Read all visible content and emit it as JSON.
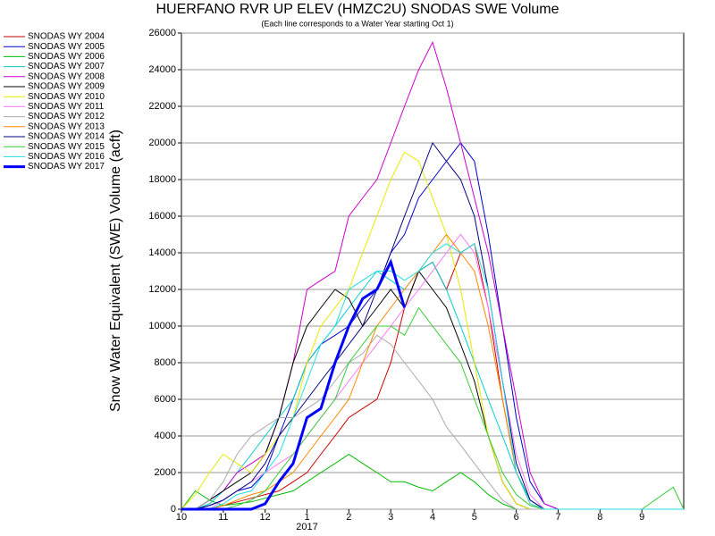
{
  "chart_data": {
    "type": "line",
    "title": "HUERFANO RVR UP ELEV (HMZC2U) SNODAS SWE Volume",
    "subtitle": "(Each line corresponds to a Water Year starting Oct 1)",
    "y_label": "Snow Water Equivalent (SWE) Volume (acft)",
    "annotation": {
      "text": "2017",
      "x": 3
    },
    "x": [
      0,
      0.33,
      0.67,
      1,
      1.33,
      1.67,
      2,
      2.33,
      2.67,
      3,
      3.33,
      3.67,
      4,
      4.33,
      4.67,
      5,
      5.33,
      5.67,
      6,
      6.33,
      6.67,
      7,
      7.33,
      7.67,
      8,
      8.33,
      8.67,
      9,
      9.33,
      10,
      11,
      11.75,
      12
    ],
    "xlim": [
      0,
      12
    ],
    "xticks": [
      {
        "value": 0,
        "label": "10"
      },
      {
        "value": 1,
        "label": "11"
      },
      {
        "value": 2,
        "label": "12"
      },
      {
        "value": 3,
        "label": "1"
      },
      {
        "value": 4,
        "label": "2"
      },
      {
        "value": 5,
        "label": "3"
      },
      {
        "value": 6,
        "label": "4"
      },
      {
        "value": 7,
        "label": "5"
      },
      {
        "value": 8,
        "label": "6"
      },
      {
        "value": 9,
        "label": "7"
      },
      {
        "value": 10,
        "label": "8"
      },
      {
        "value": 11,
        "label": "9"
      }
    ],
    "ylim": [
      0,
      26000
    ],
    "yticks": [
      0,
      2000,
      4000,
      6000,
      8000,
      10000,
      12000,
      14000,
      16000,
      18000,
      20000,
      22000,
      24000,
      26000
    ],
    "grid": true,
    "legend": "top-left",
    "series": [
      {
        "name": "SNODAS WY 2004",
        "color": "#cc0000",
        "values": [
          0,
          0,
          0,
          200,
          400,
          600,
          800,
          1000,
          1500,
          2000,
          3000,
          4000,
          5000,
          5500,
          6000,
          8000,
          11000,
          13000,
          13500,
          12000,
          14000,
          14500,
          11000,
          6000,
          2000,
          500,
          0,
          0,
          0,
          0,
          0,
          0,
          0
        ]
      },
      {
        "name": "SNODAS WY 2005",
        "color": "#0000cc",
        "values": [
          0,
          0,
          200,
          500,
          1000,
          1200,
          2000,
          4000,
          6000,
          8000,
          9000,
          9500,
          10000,
          11000,
          12000,
          14000,
          15000,
          17000,
          18000,
          19000,
          20000,
          19000,
          15000,
          10000,
          5000,
          1500,
          300,
          0,
          0,
          0,
          0,
          0,
          0
        ]
      },
      {
        "name": "SNODAS WY 2006",
        "color": "#00bb00",
        "values": [
          0,
          1000,
          500,
          200,
          300,
          400,
          600,
          800,
          1000,
          1500,
          2000,
          2500,
          3000,
          2500,
          2000,
          1500,
          1500,
          1200,
          1000,
          1500,
          2000,
          1500,
          800,
          300,
          0,
          0,
          0,
          0,
          0,
          0,
          0,
          0,
          0
        ]
      },
      {
        "name": "SNODAS WY 2007",
        "color": "#00cccc",
        "values": [
          0,
          0,
          300,
          1000,
          2000,
          3000,
          4000,
          5000,
          6000,
          8000,
          9000,
          10000,
          11000,
          12000,
          13000,
          12500,
          12000,
          13000,
          13500,
          12000,
          10000,
          8000,
          6000,
          4000,
          2000,
          500,
          0,
          0,
          0,
          0,
          0,
          0,
          0
        ]
      },
      {
        "name": "SNODAS WY 2008",
        "color": "#cc00cc",
        "values": [
          0,
          0,
          500,
          1000,
          2000,
          2500,
          3000,
          5000,
          8000,
          12000,
          12500,
          13000,
          16000,
          17000,
          18000,
          20000,
          22000,
          24000,
          25500,
          23000,
          20000,
          17000,
          14000,
          10000,
          6000,
          2000,
          300,
          0,
          0,
          0,
          0,
          0,
          0
        ]
      },
      {
        "name": "SNODAS WY 2009",
        "color": "#000000",
        "values": [
          0,
          0,
          500,
          1000,
          1500,
          2000,
          3000,
          5000,
          8000,
          10000,
          11000,
          12000,
          11500,
          10000,
          11000,
          12000,
          11000,
          13000,
          12000,
          11000,
          9000,
          7000,
          4000,
          1500,
          300,
          0,
          0,
          0,
          0,
          0,
          0,
          0,
          0
        ]
      },
      {
        "name": "SNODAS WY 2010",
        "color": "#e8e800",
        "values": [
          0,
          800,
          2000,
          3000,
          2500,
          2000,
          3000,
          4000,
          5000,
          8000,
          10000,
          11000,
          12000,
          14000,
          16000,
          18000,
          19500,
          19000,
          17000,
          15000,
          12000,
          8000,
          4000,
          1500,
          300,
          0,
          0,
          0,
          0,
          0,
          0,
          0,
          0
        ]
      },
      {
        "name": "SNODAS WY 2011",
        "color": "#ff77ff",
        "values": [
          0,
          0,
          0,
          500,
          1000,
          1500,
          2000,
          2500,
          3000,
          4000,
          5000,
          6000,
          7000,
          8000,
          9000,
          10000,
          11000,
          12000,
          13000,
          14000,
          15000,
          14000,
          11000,
          7000,
          3000,
          800,
          0,
          0,
          0,
          0,
          0,
          0,
          0
        ]
      },
      {
        "name": "SNODAS WY 2012",
        "color": "#aaaaaa",
        "values": [
          0,
          0,
          500,
          1500,
          3000,
          4000,
          4500,
          5000,
          5000,
          5500,
          6000,
          7000,
          8000,
          8500,
          9500,
          9000,
          8000,
          7000,
          6000,
          4500,
          3500,
          2500,
          1500,
          500,
          0,
          0,
          0,
          0,
          0,
          0,
          0,
          0,
          0
        ]
      },
      {
        "name": "SNODAS WY 2013",
        "color": "#ff8800",
        "values": [
          0,
          0,
          0,
          200,
          500,
          800,
          1000,
          1500,
          2000,
          3000,
          4000,
          5000,
          6000,
          8000,
          10000,
          11000,
          12000,
          13000,
          14000,
          15000,
          14000,
          13000,
          10000,
          6000,
          2000,
          300,
          0,
          0,
          0,
          0,
          0,
          0,
          0
        ]
      },
      {
        "name": "SNODAS WY 2014",
        "color": "#000080",
        "values": [
          0,
          0,
          200,
          500,
          1000,
          1500,
          2500,
          4000,
          5000,
          6000,
          7000,
          8000,
          9000,
          10000,
          12000,
          14000,
          16000,
          18000,
          20000,
          19000,
          18000,
          16000,
          12000,
          7000,
          2500,
          500,
          0,
          0,
          0,
          0,
          0,
          0,
          0
        ]
      },
      {
        "name": "SNODAS WY 2015",
        "color": "#33cc33",
        "values": [
          0,
          0,
          0,
          0,
          200,
          500,
          1000,
          2000,
          3000,
          4000,
          5000,
          6000,
          8000,
          9000,
          10000,
          10000,
          9500,
          11000,
          10000,
          9000,
          8000,
          6000,
          4000,
          2000,
          800,
          200,
          0,
          0,
          0,
          0,
          0,
          1200,
          0
        ]
      },
      {
        "name": "SNODAS WY 2016",
        "color": "#22dddd",
        "values": [
          0,
          0,
          0,
          300,
          800,
          1000,
          2000,
          3000,
          5000,
          7000,
          9000,
          10000,
          12000,
          12500,
          13000,
          13000,
          12500,
          13000,
          14000,
          14500,
          14000,
          14500,
          12000,
          7000,
          2000,
          300,
          0,
          0,
          0,
          0,
          0,
          0,
          0
        ]
      },
      {
        "name": "SNODAS WY 2017",
        "color": "#0000ff",
        "width": 3,
        "values": [
          0,
          0,
          0,
          0,
          0,
          0,
          300,
          1500,
          2500,
          5000,
          5500,
          8000,
          10000,
          11500,
          12000,
          13500,
          11000,
          null,
          null,
          null,
          null,
          null,
          null,
          null,
          null,
          null,
          null,
          null,
          null,
          null,
          null,
          null,
          null
        ]
      }
    ]
  }
}
